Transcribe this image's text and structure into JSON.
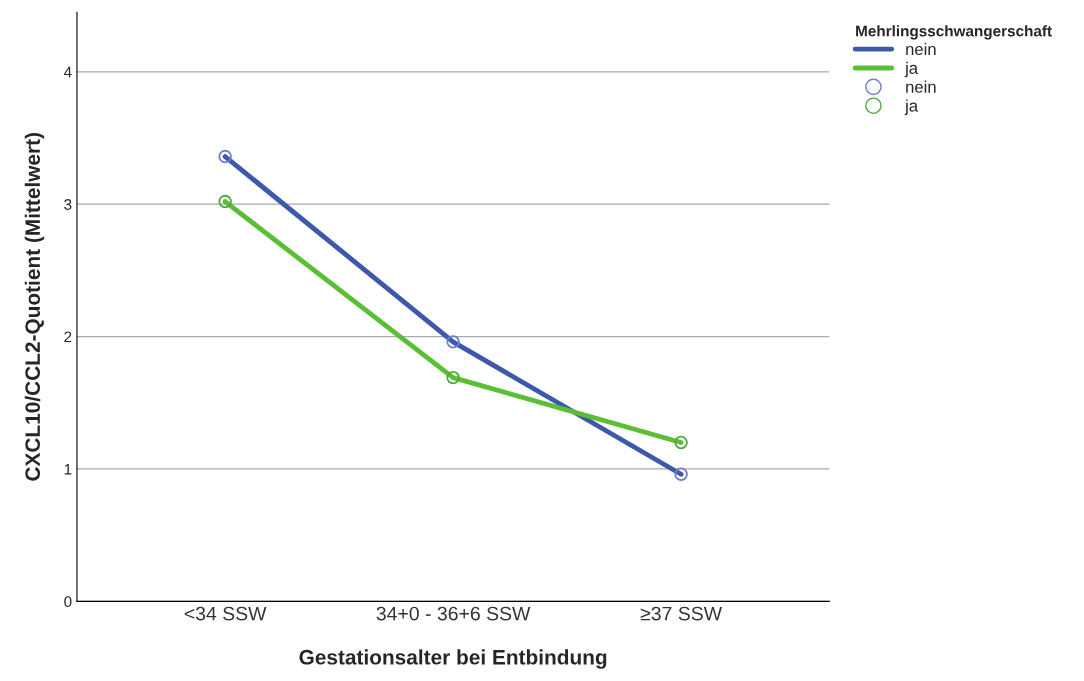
{
  "chart_data": {
    "type": "line",
    "xlabel": "Gestationsalter bei Entbindung",
    "ylabel": "CXCL10/CCL2-Quotient (Mittelwert)",
    "legend_title": "Mehrlingsschwangerschaft",
    "categories": [
      "<34 SSW",
      "34+0 - 36+6 SSW",
      "≥37 SSW"
    ],
    "series": [
      {
        "name": "nein",
        "color": "#3e58ac",
        "marker": "none",
        "values": [
          3.36,
          1.96,
          0.96
        ]
      },
      {
        "name": "ja",
        "color": "#5bbf36",
        "marker": "none",
        "values": [
          3.02,
          1.69,
          1.2
        ]
      },
      {
        "name": "nein",
        "color": "#6b80cc",
        "type": "scatter",
        "marker": "circle",
        "values": [
          3.36,
          1.96,
          0.96
        ]
      },
      {
        "name": "ja",
        "color": "#4caa3a",
        "type": "scatter",
        "marker": "circle",
        "values": [
          3.02,
          1.69,
          1.2
        ]
      }
    ],
    "ylim": [
      0,
      4.45
    ],
    "yticks": [
      0,
      1,
      2,
      3,
      4
    ],
    "grid": "y",
    "legend": "top right"
  }
}
